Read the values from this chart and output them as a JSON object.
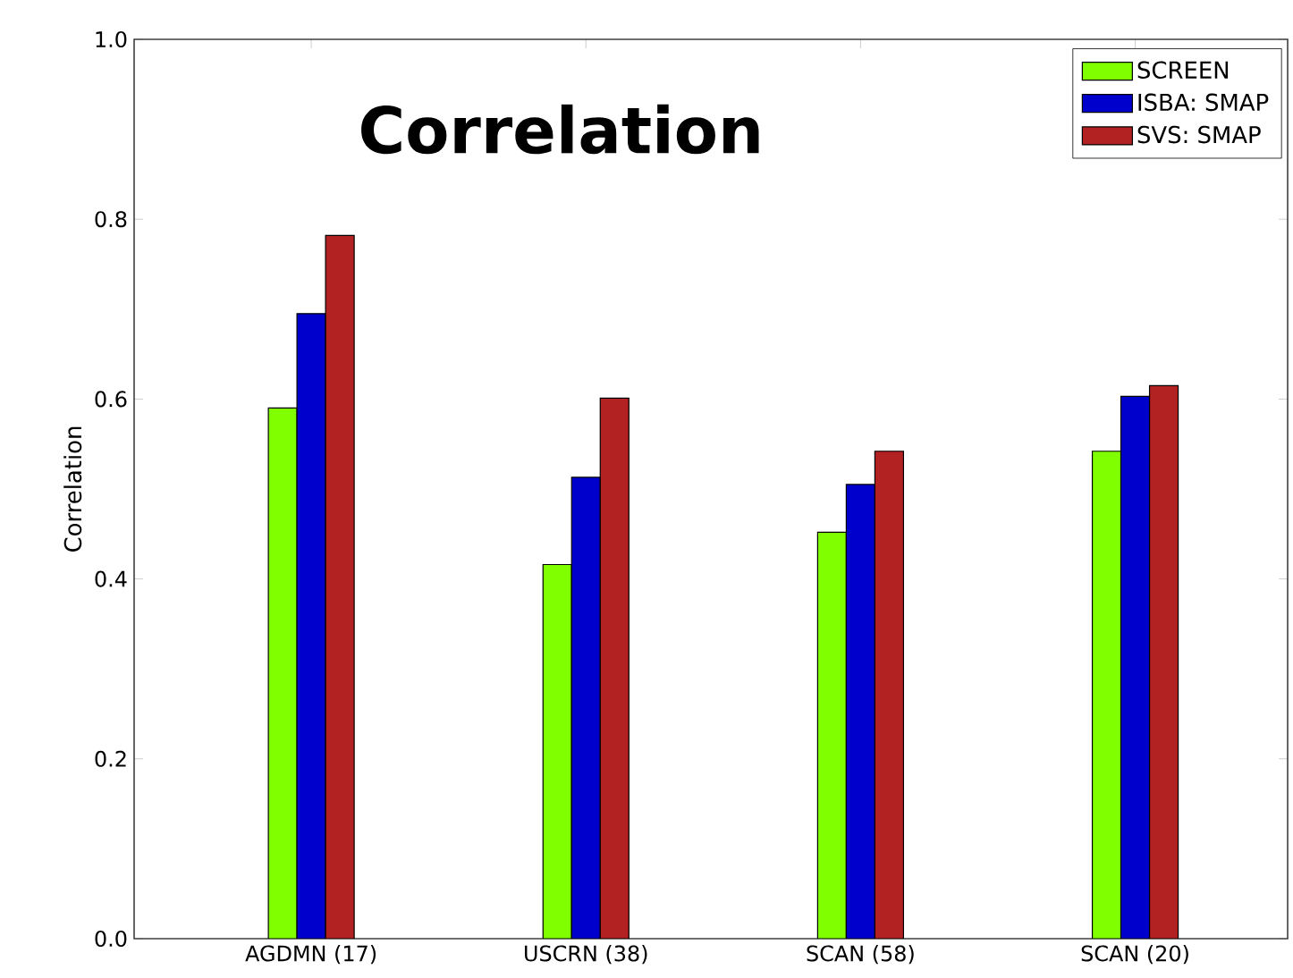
{
  "chart_data": {
    "type": "bar",
    "title": "Correlation",
    "ylabel": "Correlation",
    "categories": [
      "AGDMN (17)",
      "USCRN (38)",
      "SCAN (58)",
      "SCAN (20)"
    ],
    "series": [
      {
        "name": "SCREEN",
        "color": "#7fff00",
        "values": [
          0.59,
          0.416,
          0.452,
          0.542
        ]
      },
      {
        "name": "ISBA: SMAP",
        "color": "#0000cc",
        "values": [
          0.695,
          0.513,
          0.505,
          0.603
        ]
      },
      {
        "name": "SVS: SMAP",
        "color": "#b22222",
        "values": [
          0.782,
          0.601,
          0.542,
          0.615
        ]
      }
    ],
    "ylim": [
      0,
      1
    ],
    "yticks": [
      {
        "value": 0,
        "label": "0.0"
      },
      0.2,
      0.4,
      0.6,
      0.8,
      {
        "value": 1,
        "label": "1.0"
      }
    ],
    "grid": false,
    "legend": "top right"
  }
}
